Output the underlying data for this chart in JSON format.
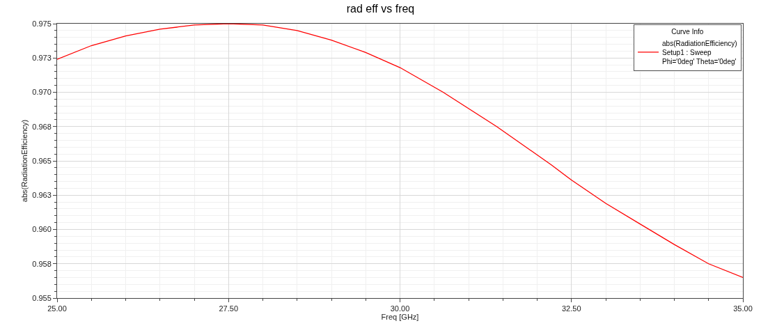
{
  "chart_data": {
    "type": "line",
    "title": "rad eff vs freq",
    "xlabel": "Freq [GHz]",
    "ylabel": "abs(RadiationEfficiency)",
    "legend_title": "Curve Info",
    "x": [
      25.0,
      25.5,
      26.0,
      26.5,
      27.0,
      27.5,
      28.0,
      28.5,
      29.0,
      29.5,
      30.0,
      30.63,
      31.41,
      32.21,
      32.5,
      33.0,
      33.5,
      34.0,
      34.5,
      35.0
    ],
    "series": [
      {
        "name": "abs(RadiationEfficiency)\nSetup1 : Sweep\nPhi='0deg' Theta='0deg'",
        "color": "#ff0000",
        "values": [
          0.9724,
          0.9734,
          0.9741,
          0.9746,
          0.9749,
          0.975,
          0.9749,
          0.9745,
          0.9738,
          0.9729,
          0.9718,
          0.97,
          0.9675,
          0.9647,
          0.9636,
          0.9619,
          0.9604,
          0.9589,
          0.9575,
          0.9565
        ]
      }
    ],
    "xlim": [
      25,
      35
    ],
    "xticks": [
      {
        "value": 25,
        "label": "25.00"
      },
      {
        "value": 27.5,
        "label": "27.50"
      },
      {
        "value": 30,
        "label": "30.00"
      },
      {
        "value": 32.5,
        "label": "32.50"
      },
      {
        "value": 35,
        "label": "35.00"
      }
    ],
    "ylim": [
      0.955,
      0.975
    ],
    "yticks": [
      {
        "value": 0.955,
        "label": "0.955"
      },
      {
        "value": 0.9575,
        "label": "0.958"
      },
      {
        "value": 0.96,
        "label": "0.960"
      },
      {
        "value": 0.9625,
        "label": "0.963"
      },
      {
        "value": 0.965,
        "label": "0.965"
      },
      {
        "value": 0.9675,
        "label": "0.968"
      },
      {
        "value": 0.97,
        "label": "0.970"
      },
      {
        "value": 0.9725,
        "label": "0.973"
      },
      {
        "value": 0.975,
        "label": "0.975"
      }
    ],
    "grid": true,
    "legend": "top right",
    "marker": "none",
    "line_style": "solid"
  }
}
